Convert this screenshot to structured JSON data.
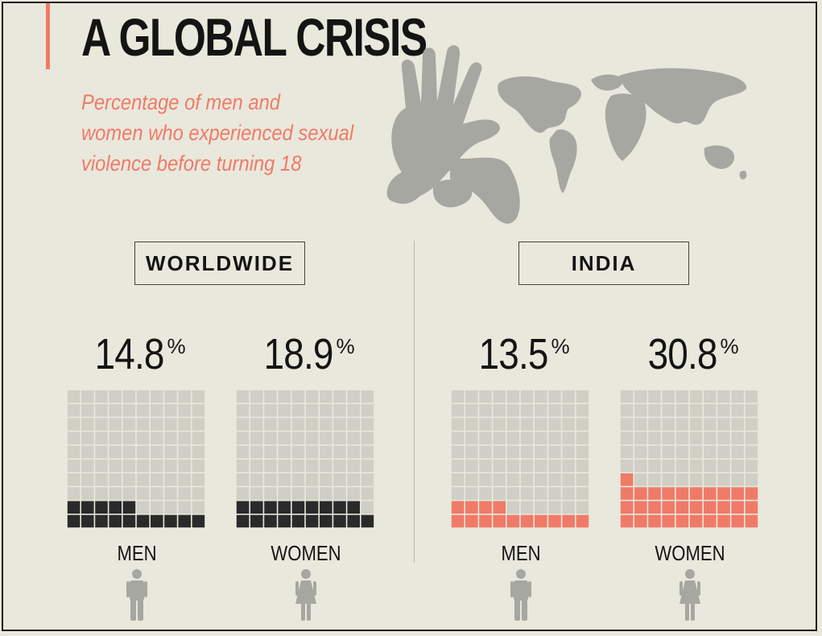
{
  "title": "A GLOBAL CRISIS",
  "subtitle_lines": [
    "Percentage of men and",
    "women who experienced sexual",
    "violence before turning 18"
  ],
  "colors": {
    "background": "#e9e8dc",
    "accent": "#f07a68",
    "empty_cell": "#cfcfc6",
    "worldwide_fill": "#2a2a2a",
    "india_fill": "#f07a68",
    "silhouette": "#a7a7a1"
  },
  "regions": [
    {
      "label": "WORLDWIDE"
    },
    {
      "label": "INDIA"
    }
  ],
  "chart_data": {
    "type": "waffle",
    "title": "A GLOBAL CRISIS",
    "subtitle": "Percentage of men and women who experienced sexual violence before turning 18",
    "unit": "%",
    "groups": [
      {
        "region": "WORLDWIDE",
        "gender": "MEN",
        "value": 14.8,
        "value_label": "14.8"
      },
      {
        "region": "WORLDWIDE",
        "gender": "WOMEN",
        "value": 18.9,
        "value_label": "18.9"
      },
      {
        "region": "INDIA",
        "gender": "MEN",
        "value": 13.5,
        "value_label": "13.5"
      },
      {
        "region": "INDIA",
        "gender": "WOMEN",
        "value": 30.8,
        "value_label": "30.8"
      }
    ],
    "grid": {
      "rows": 10,
      "cols": 10,
      "total": 100
    }
  }
}
